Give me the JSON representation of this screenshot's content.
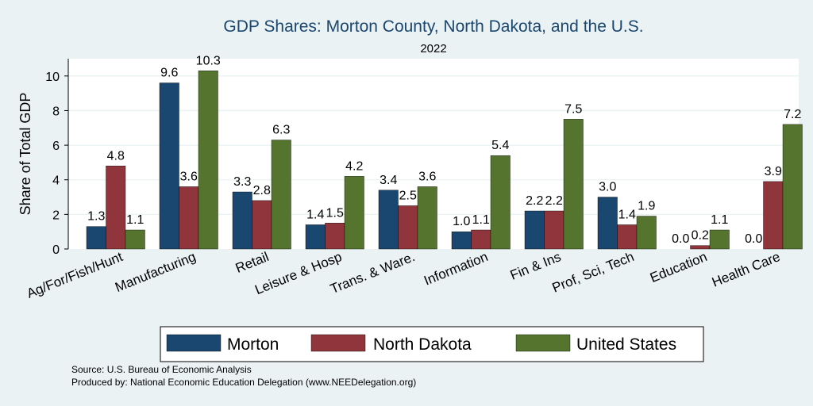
{
  "chart_data": {
    "type": "bar",
    "title": "GDP Shares: Morton County, North Dakota, and the U.S.",
    "subtitle": "2022",
    "xlabel": "",
    "ylabel": "Share of Total GDP",
    "ylim": [
      0,
      11
    ],
    "yticks": [
      0,
      2,
      4,
      6,
      8,
      10
    ],
    "grid": true,
    "legend_position": "bottom",
    "categories": [
      "Ag/For/Fish/Hunt",
      "Manufacturing",
      "Retail",
      "Leisure & Hosp",
      "Trans. & Ware.",
      "Information",
      "Fin & Ins",
      "Prof, Sci, Tech",
      "Education",
      "Health Care"
    ],
    "series": [
      {
        "name": "Morton",
        "color": "#1a476f",
        "values": [
          1.3,
          9.6,
          3.3,
          1.4,
          3.4,
          1.0,
          2.2,
          3.0,
          0.0,
          0.0
        ],
        "labels": [
          "1.3",
          "9.6",
          "3.3",
          "1.4",
          "3.4",
          "1.0",
          "2.2",
          "3.0",
          "0.0",
          "0.0"
        ]
      },
      {
        "name": "North Dakota",
        "color": "#90353b",
        "values": [
          4.8,
          3.6,
          2.8,
          1.5,
          2.5,
          1.1,
          2.2,
          1.4,
          0.2,
          3.9
        ],
        "labels": [
          "4.8",
          "3.6",
          "2.8",
          "1.5",
          "2.5",
          "1.1",
          "2.2",
          "1.4",
          "0.2",
          "3.9"
        ]
      },
      {
        "name": "United States",
        "color": "#55752f",
        "values": [
          1.1,
          10.3,
          6.3,
          4.2,
          3.6,
          5.4,
          7.5,
          1.9,
          1.1,
          7.2
        ],
        "labels": [
          "1.1",
          "10.3",
          "6.3",
          "4.2",
          "3.6",
          "5.4",
          "7.5",
          "1.9",
          "1.1",
          "7.2"
        ]
      }
    ]
  },
  "notes": {
    "source": "Source: U.S. Bureau of Economic Analysis",
    "produced_by": "Produced by: National Economic Education Delegation (www.NEEDelegation.org)"
  },
  "colors": {
    "background": "#eaf2f3",
    "plot_background": "#ffffff",
    "grid": "#eaf2f3",
    "title": "#1a476f"
  }
}
